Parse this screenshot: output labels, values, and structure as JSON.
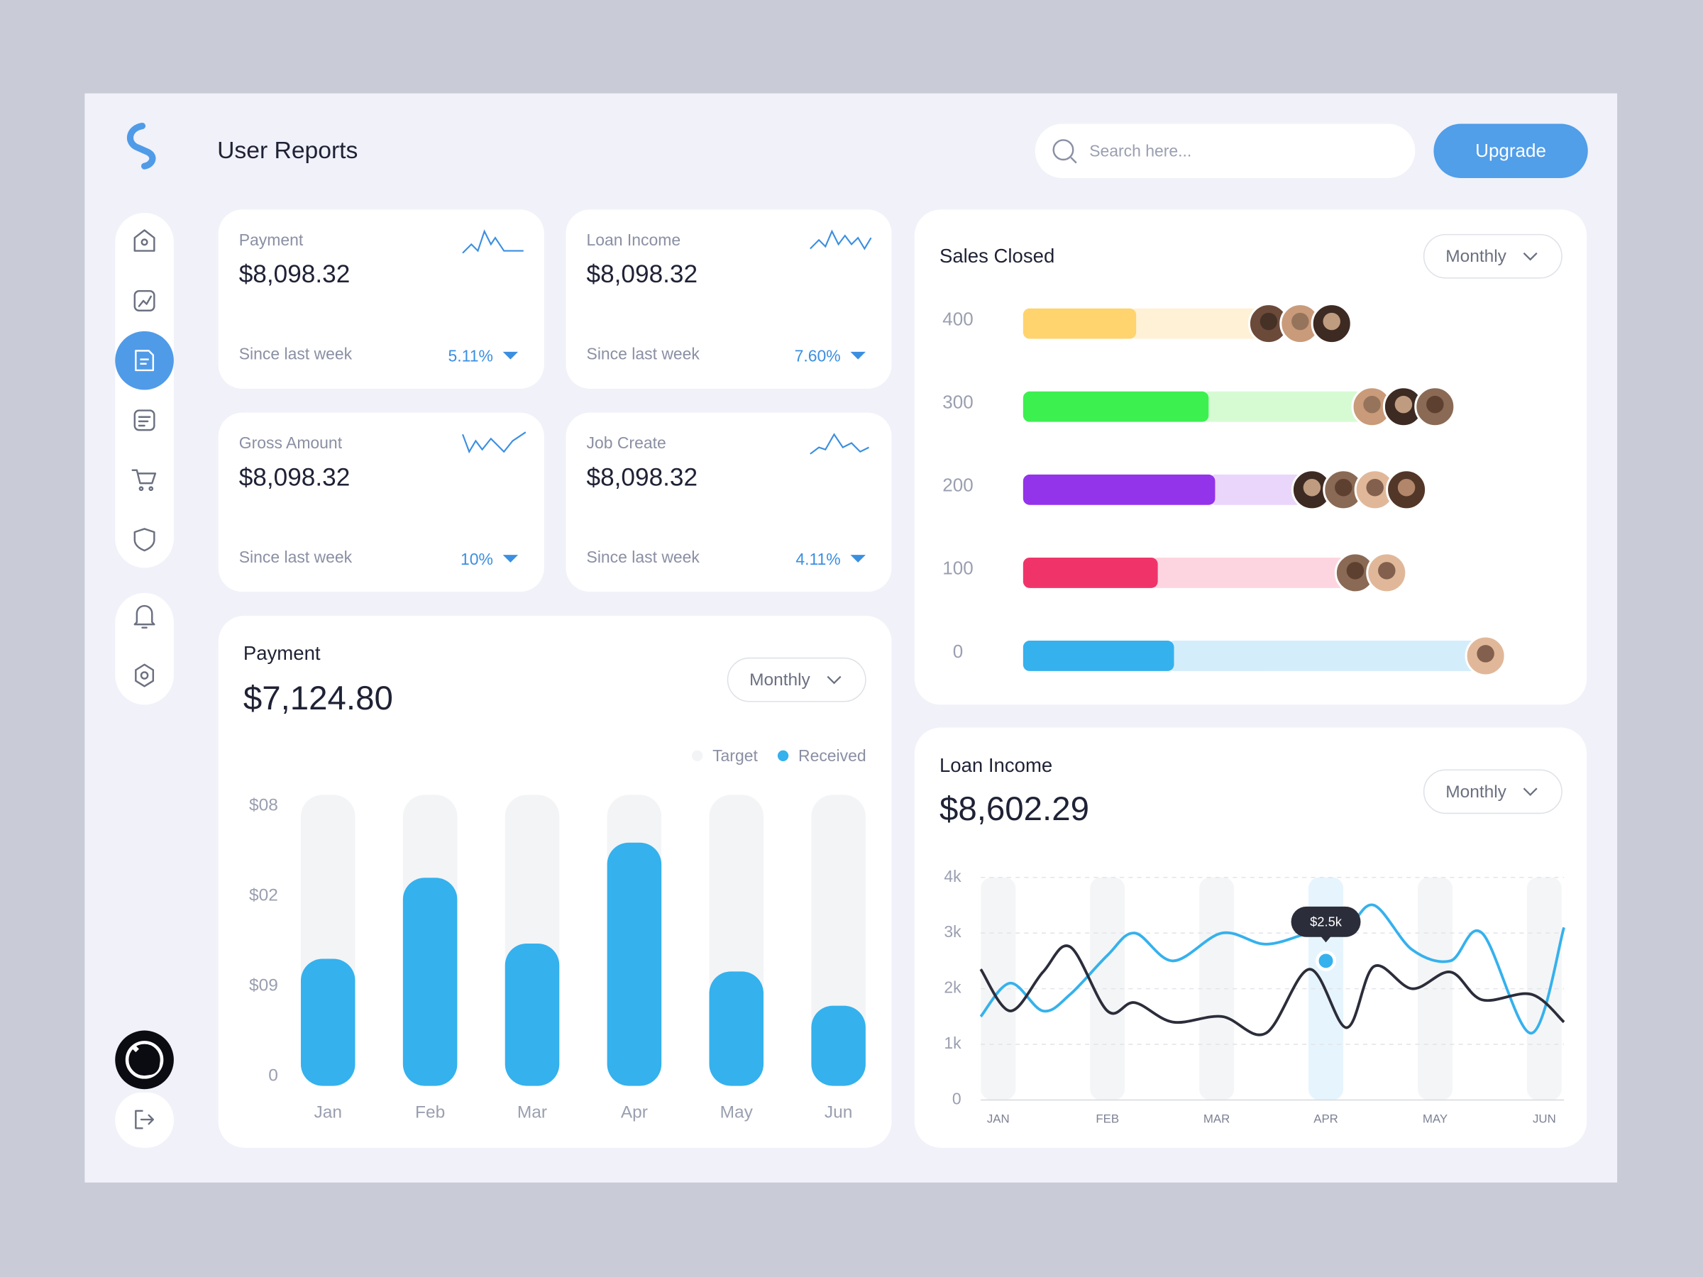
{
  "header": {
    "title": "User Reports",
    "search_placeholder": "Search here...",
    "button": "Upgrade"
  },
  "stat_cards": [
    {
      "label": "Payment",
      "value": "$8,098.32",
      "footer": "Since last week",
      "change": "5.11%"
    },
    {
      "label": "Loan Income",
      "value": "$8,098.32",
      "footer": "Since last week",
      "change": "7.60%"
    },
    {
      "label": "Gross Amount",
      "value": "$8,098.32",
      "footer": "Since last week",
      "change": "10%"
    },
    {
      "label": "Job Create",
      "value": "$8,098.32",
      "footer": "Since last week",
      "change": "4.11%"
    }
  ],
  "chart_data": [
    {
      "type": "bar",
      "barmode": "overlay",
      "title": "Payment",
      "total": "$7,124.80",
      "filter": "Monthly",
      "categories": [
        "Jan",
        "Feb",
        "Mar",
        "Apr",
        "May",
        "Jun"
      ],
      "series": [
        {
          "name": "Target",
          "color": "#f3f4f6",
          "values": [
            3.23,
            3.23,
            3.23,
            3.23,
            3.23,
            3.23
          ]
        },
        {
          "name": "Received",
          "color": "#35b1ed",
          "values": [
            1.41,
            2.31,
            1.58,
            2.7,
            1.27,
            0.89
          ]
        }
      ],
      "ylim": [
        0,
        3.23
      ],
      "yticks": [
        0,
        {
          "value": 1,
          "label": "$09"
        },
        {
          "value": 2,
          "label": "$02"
        },
        {
          "value": 3,
          "label": "$08"
        }
      ]
    },
    {
      "type": "hbar",
      "title": "Sales Closed",
      "filter": "Monthly",
      "categories": [
        "400",
        "300",
        "200",
        "100",
        "0"
      ],
      "series": [
        {
          "colors": [
            "#ffd36e",
            "#3cf050",
            "#9333ea",
            "#f0346a",
            "#35b1ed"
          ],
          "values": [
            20.9,
            34.3,
            35.5,
            24.9,
            27.9
          ]
        },
        {
          "colors": [
            "#fff1d5",
            "#d6fbd3",
            "#ead6fb",
            "#fdd5e0",
            "#d4edfb"
          ],
          "values": [
            22.9,
            28.6,
            16.3,
            34.9,
            56
          ]
        }
      ],
      "xlim": [
        0,
        100
      ]
    },
    {
      "type": "line",
      "title": "Loan Income",
      "total": "$8,602.29",
      "filter": "Monthly",
      "x": [
        -0.16,
        0.11,
        0.41,
        0.66,
        1.0,
        1.25,
        1.6,
        2.05,
        2.45,
        2.85,
        3.19,
        3.44,
        3.79,
        4.14,
        4.43,
        4.88,
        5.18
      ],
      "series": [
        {
          "color": "#35b1ed",
          "values": [
            1500,
            2100,
            1600,
            1900,
            2600,
            3000,
            2500,
            3000,
            2800,
            3000,
            3100,
            3500,
            2700,
            2500,
            3000,
            1200,
            3100
          ]
        },
        {
          "color": "#2b2d3a",
          "values": [
            2350,
            1600,
            2300,
            2750,
            1600,
            1750,
            1400,
            1500,
            1200,
            2350,
            1300,
            2400,
            2000,
            2300,
            1800,
            1900,
            1400
          ]
        }
      ],
      "xlim": [
        -0.16,
        5.18
      ],
      "xticks": [
        {
          "value": 0,
          "label": "JAN"
        },
        {
          "value": 1,
          "label": "FEB"
        },
        {
          "value": 2,
          "label": "MAR"
        },
        {
          "value": 3,
          "label": "APR"
        },
        {
          "value": 4,
          "label": "MAY"
        },
        {
          "value": 5,
          "label": "JUN"
        }
      ],
      "ylim": [
        0,
        4000
      ],
      "yticks": [
        0,
        {
          "value": 1000,
          "label": "1k"
        },
        {
          "value": 2000,
          "label": "2k"
        },
        {
          "value": 3000,
          "label": "3k"
        },
        {
          "value": 4000,
          "label": "4k"
        }
      ],
      "grid": true,
      "tooltip": {
        "x": 3,
        "value": 2500,
        "label": "$2.5k"
      }
    }
  ]
}
